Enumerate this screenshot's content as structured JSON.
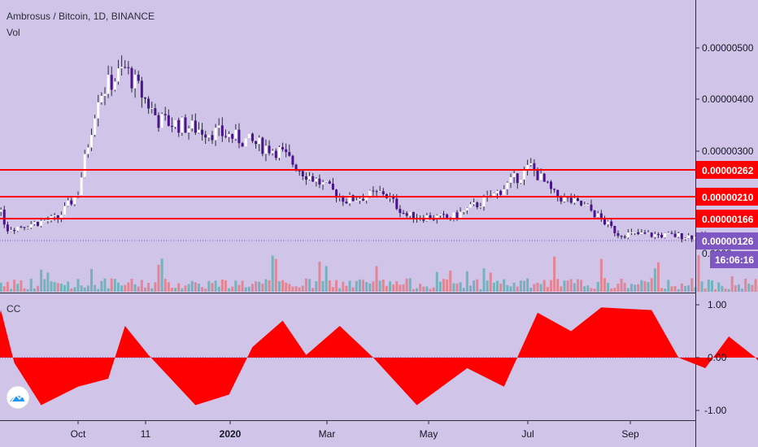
{
  "header": {
    "symbol": "Ambrosus / Bitcoin, 1D, BINANCE",
    "volume_label": "Vol"
  },
  "indicator": {
    "label": "CC"
  },
  "colors": {
    "background": "#d1c4e9",
    "candle_up": "#ffffff",
    "candle_down": "#4a148c",
    "wick": "#2a2e39",
    "volume_up": "#26a69a",
    "volume_down": "#ef5350",
    "resistance": "#ff0000",
    "price_tag": "#7e57c2",
    "indicator_fill": "#ff0000",
    "grid": "#2a2e39"
  },
  "price_axis": {
    "ticks": [
      "0.00000500",
      "0.00000400",
      "0.00000300"
    ],
    "partial_tick": "0.0000"
  },
  "level_tags": [
    "0.00000262",
    "0.00000210",
    "0.00000166"
  ],
  "current_price": {
    "value": "0.00000126",
    "countdown": "16:06:16"
  },
  "indicator_axis": {
    "ticks": [
      "1.00",
      "0.00",
      "-1.00"
    ]
  },
  "time_axis": {
    "ticks": [
      "Oct",
      "11",
      "2020",
      "Mar",
      "May",
      "Jul",
      "Sep"
    ]
  },
  "chart_data": [
    {
      "type": "candlestick",
      "title": "Ambrosus / Bitcoin, 1D, BINANCE",
      "y_unit": "BTC",
      "ylim": [
        7.5e-07,
        5.6e-06
      ],
      "x_range": [
        "2019-08-20",
        "2020-09-30"
      ],
      "horizontal_levels": [
        2.62e-06,
        2.1e-06,
        1.66e-06
      ],
      "last_price": 1.26e-06,
      "close_path": [
        {
          "date": "2019-08-20",
          "close": 2.4e-06
        },
        {
          "date": "2019-09-05",
          "close": 2.2e-06
        },
        {
          "date": "2019-09-10",
          "close": 1.5e-06
        },
        {
          "date": "2019-09-25",
          "close": 1.7e-06
        },
        {
          "date": "2019-10-01",
          "close": 2.2e-06
        },
        {
          "date": "2019-10-07",
          "close": 4.1e-06
        },
        {
          "date": "2019-10-15",
          "close": 4.6e-06
        },
        {
          "date": "2019-10-25",
          "close": 3.6e-06
        },
        {
          "date": "2019-11-15",
          "close": 3.3e-06
        },
        {
          "date": "2019-11-30",
          "close": 3e-06
        },
        {
          "date": "2019-12-07",
          "close": 2.6e-06
        },
        {
          "date": "2019-12-20",
          "close": 2.05e-06
        },
        {
          "date": "2019-12-31",
          "close": 2.2e-06
        },
        {
          "date": "2020-01-07",
          "close": 1.75e-06
        },
        {
          "date": "2020-01-20",
          "close": 1.7e-06
        },
        {
          "date": "2020-02-01",
          "close": 2.1e-06
        },
        {
          "date": "2020-02-13",
          "close": 2.7e-06
        },
        {
          "date": "2020-02-20",
          "close": 2.15e-06
        },
        {
          "date": "2020-03-01",
          "close": 1.9e-06
        },
        {
          "date": "2020-03-10",
          "close": 1.4e-06
        },
        {
          "date": "2020-04-01",
          "close": 1.35e-06
        },
        {
          "date": "2020-04-20",
          "close": 1.2e-06
        },
        {
          "date": "2020-05-05",
          "close": 9.5e-07
        },
        {
          "date": "2020-05-15",
          "close": 1.2e-06
        },
        {
          "date": "2020-05-25",
          "close": 1.35e-06
        },
        {
          "date": "2020-05-28",
          "close": 1.26e-06
        }
      ]
    },
    {
      "type": "area",
      "title": "CC",
      "ylim": [
        -1.0,
        1.0
      ],
      "series": [
        {
          "values": [
            {
              "date": "2019-08-20",
              "value": 0.0
            },
            {
              "date": "2019-08-25",
              "value": -0.85
            },
            {
              "date": "2019-09-05",
              "value": 0.15
            },
            {
              "date": "2019-09-08",
              "value": 0.9
            },
            {
              "date": "2019-09-12",
              "value": -0.1
            },
            {
              "date": "2019-09-20",
              "value": -0.9
            },
            {
              "date": "2019-10-01",
              "value": -0.55
            },
            {
              "date": "2019-10-10",
              "value": -0.4
            },
            {
              "date": "2019-10-15",
              "value": 0.6
            },
            {
              "date": "2019-10-22",
              "value": 0.05
            },
            {
              "date": "2019-11-05",
              "value": -0.9
            },
            {
              "date": "2019-11-15",
              "value": -0.7
            },
            {
              "date": "2019-11-22",
              "value": 0.2
            },
            {
              "date": "2019-12-01",
              "value": 0.7
            },
            {
              "date": "2019-12-08",
              "value": 0.05
            },
            {
              "date": "2019-12-18",
              "value": 0.6
            },
            {
              "date": "2019-12-28",
              "value": 0.0
            },
            {
              "date": "2020-01-10",
              "value": -0.9
            },
            {
              "date": "2020-01-25",
              "value": -0.2
            },
            {
              "date": "2020-02-05",
              "value": -0.55
            },
            {
              "date": "2020-02-15",
              "value": 0.85
            },
            {
              "date": "2020-02-25",
              "value": 0.5
            },
            {
              "date": "2020-03-05",
              "value": 0.95
            },
            {
              "date": "2020-03-20",
              "value": 0.9
            },
            {
              "date": "2020-03-28",
              "value": 0.0
            },
            {
              "date": "2020-04-05",
              "value": -0.2
            },
            {
              "date": "2020-04-12",
              "value": 0.4
            },
            {
              "date": "2020-04-20",
              "value": 0.0
            },
            {
              "date": "2020-05-01",
              "value": -0.9
            },
            {
              "date": "2020-05-10",
              "value": -0.85
            },
            {
              "date": "2020-05-20",
              "value": -0.4
            },
            {
              "date": "2020-05-28",
              "value": 0.0
            }
          ]
        }
      ]
    }
  ]
}
